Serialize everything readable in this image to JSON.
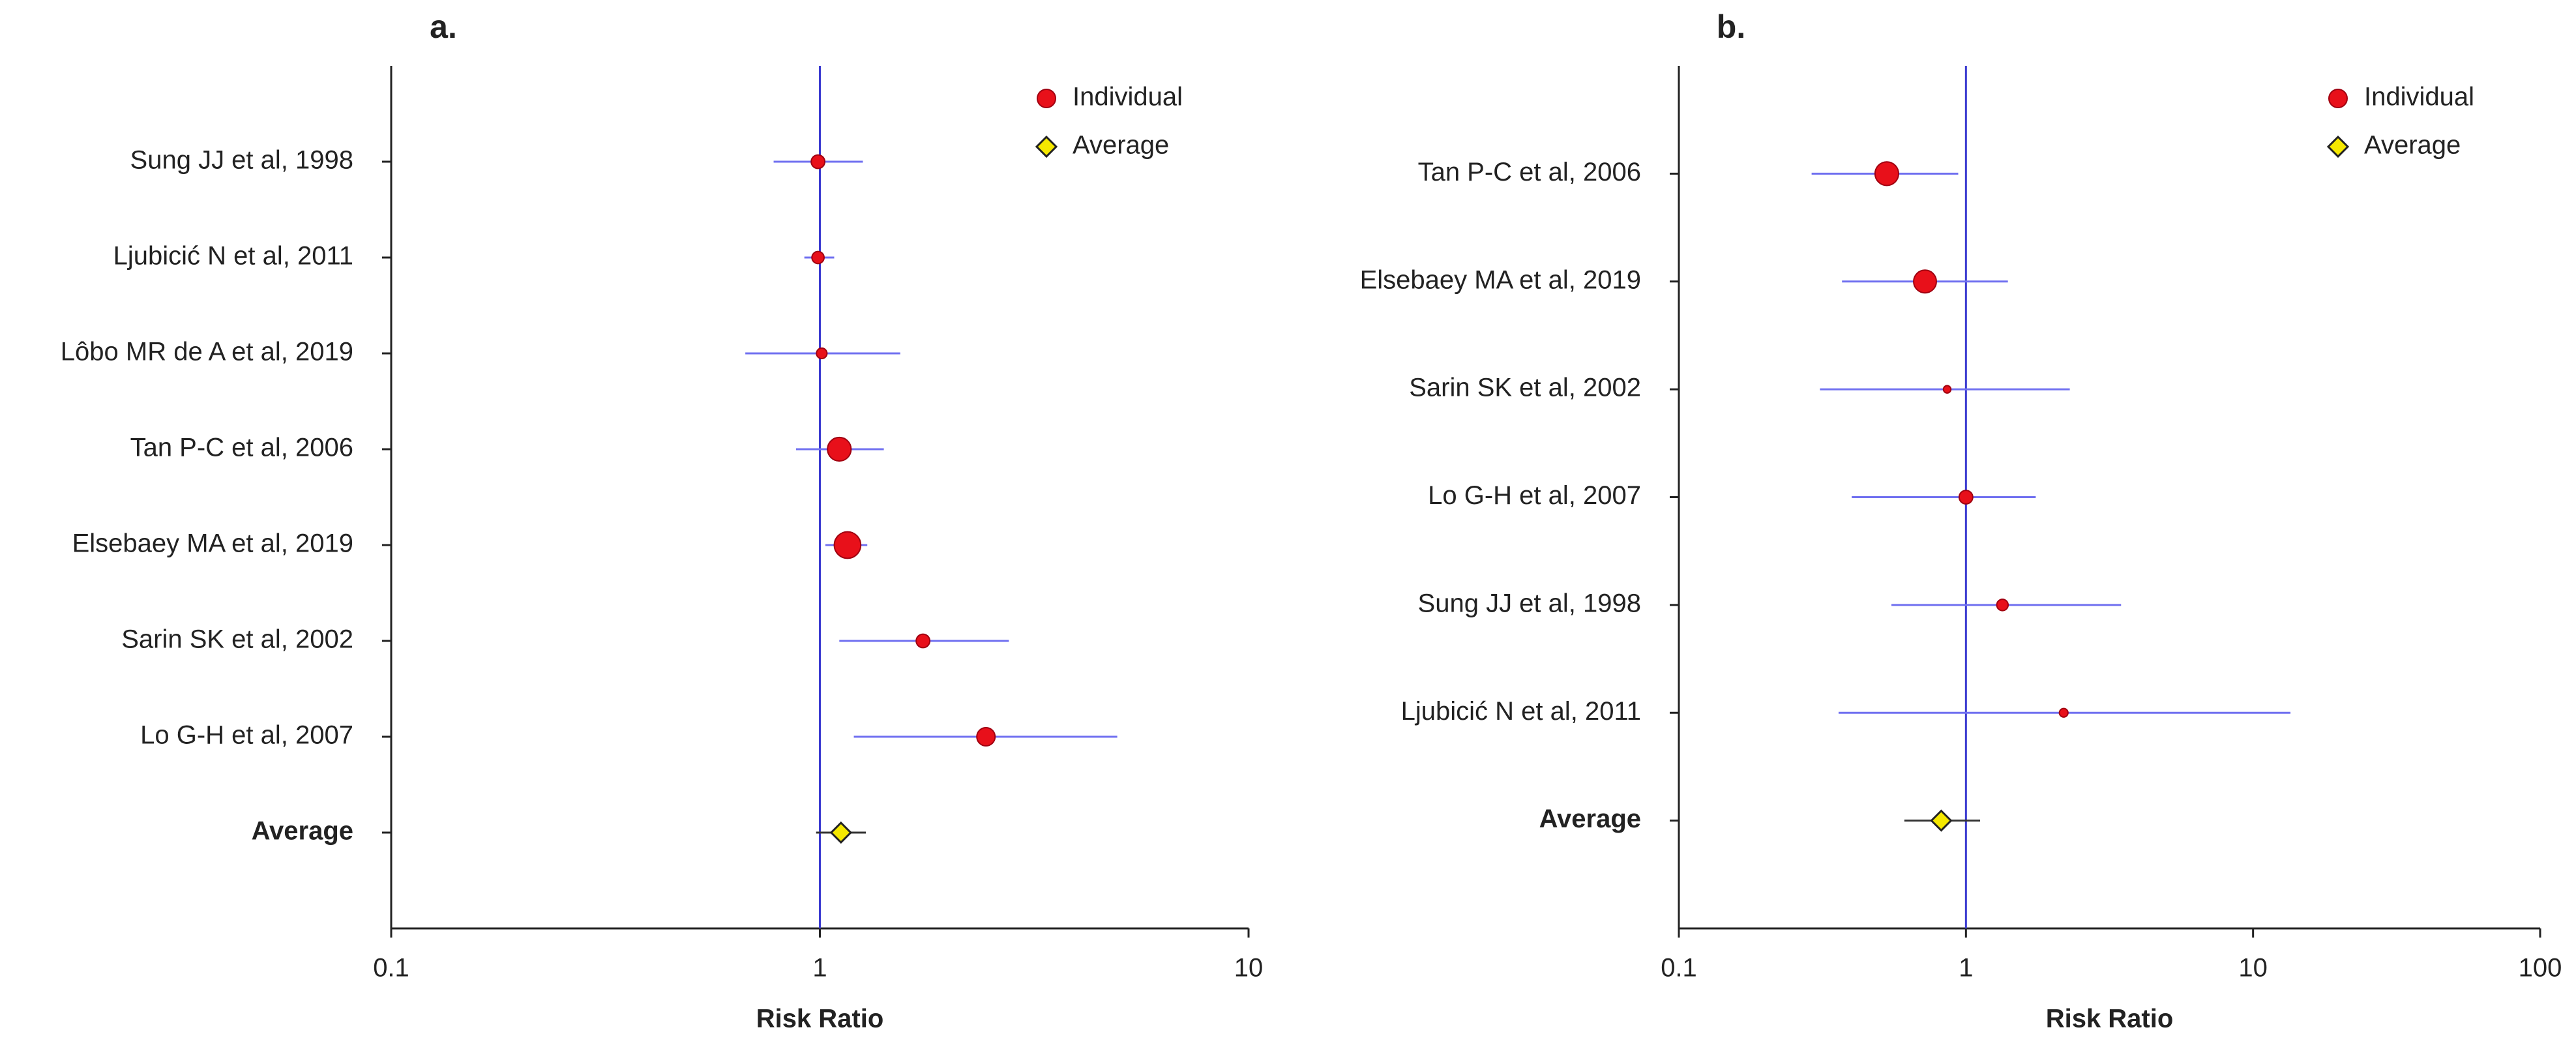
{
  "chart_data": [
    {
      "type": "forest",
      "title": "a.",
      "x_label": "Risk Ratio",
      "log_x": true,
      "xlim": [
        0.1,
        10
      ],
      "xticks": [
        0.1,
        1,
        10
      ],
      "reference": 1,
      "ci_color": "#7070f0",
      "reference_color": "#3a3ad0",
      "legend_position": "upper right",
      "series": [
        {
          "name": "Individual",
          "color": "#e8101a"
        },
        {
          "name": "Average",
          "color": "#f5e800"
        }
      ],
      "categories": [
        "Sung JJ et al, 1998",
        "Ljubicić N et al, 2011",
        "Lôbo MR de A et al, 2019",
        "Tan P-C et al, 2006",
        "Elsebaey MA et al, 2019",
        "Sarin SK et al, 2002",
        "Lo G-H et al, 2007"
      ],
      "values": [
        0.99,
        0.99,
        1.01,
        1.11,
        1.16,
        1.74,
        2.44
      ],
      "lower": [
        0.78,
        0.92,
        0.67,
        0.88,
        1.03,
        1.11,
        1.2
      ],
      "upper": [
        1.26,
        1.08,
        1.54,
        1.41,
        1.29,
        2.76,
        4.94
      ],
      "weights": [
        10,
        8,
        6,
        30,
        38,
        10,
        18
      ],
      "average": {
        "label": "Average",
        "value": 1.12,
        "lower": 0.98,
        "upper": 1.28
      }
    },
    {
      "type": "forest",
      "title": "b.",
      "x_label": "Risk Ratio",
      "log_x": true,
      "xlim": [
        0.1,
        100
      ],
      "xticks": [
        0.1,
        1,
        10,
        100
      ],
      "reference": 1,
      "ci_color": "#7070f0",
      "reference_color": "#3a3ad0",
      "legend_position": "upper right",
      "series": [
        {
          "name": "Individual",
          "color": "#e8101a"
        },
        {
          "name": "Average",
          "color": "#f5e800"
        }
      ],
      "categories": [
        "Tan P-C et al, 2006",
        "Elsebaey MA et al, 2019",
        "Sarin SK et al, 2002",
        "Lo G-H et al, 2007",
        "Sung JJ et al, 1998",
        "Ljubicić N et al, 2011"
      ],
      "values": [
        0.53,
        0.72,
        0.86,
        1.0,
        1.34,
        2.19
      ],
      "lower": [
        0.29,
        0.37,
        0.31,
        0.4,
        0.55,
        0.36
      ],
      "upper": [
        0.94,
        1.4,
        2.3,
        1.75,
        3.47,
        13.5
      ],
      "weights": [
        30,
        28,
        3,
        10,
        7,
        4
      ],
      "average": {
        "label": "Average",
        "value": 0.82,
        "lower": 0.61,
        "upper": 1.12
      }
    }
  ]
}
